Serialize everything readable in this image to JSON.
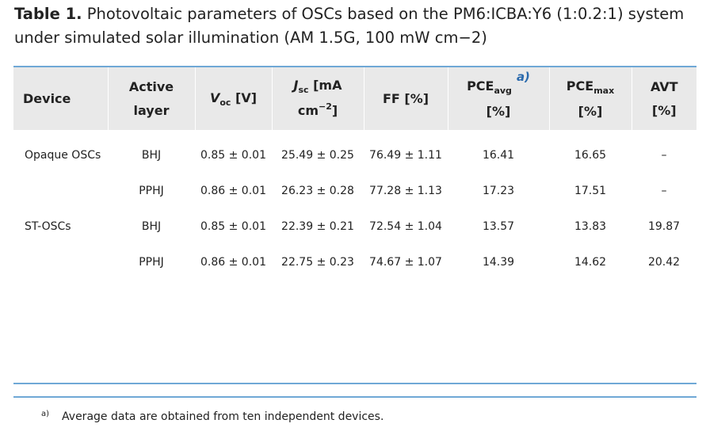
{
  "caption": {
    "label": "Table 1.",
    "text": "Photovoltaic parameters of OSCs based on the PM6:ICBA:Y6 (1:0.2:1) system under simulated solar illumination (AM 1.5G, 100 mW cm−2)"
  },
  "headers": {
    "device": "Device",
    "layer_1": "Active",
    "layer_2": "layer",
    "voc_main": "V",
    "voc_sub": "oc",
    "voc_unit": " [V]",
    "jsc_main": "J",
    "jsc_sub": "sc",
    "jsc_unit": " [mA",
    "jsc_unit2": "cm",
    "jsc_sup": "−2",
    "jsc_close": "]",
    "ff": "FF [%]",
    "pceavg_main": "PCE",
    "pceavg_sub": "avg",
    "pceavg_note": "a)",
    "pceavg_unit": "[%]",
    "pcemax_main": "PCE",
    "pcemax_sub": "max",
    "pcemax_unit": "[%]",
    "avt_1": "AVT",
    "avt_2": "[%]"
  },
  "rows": [
    {
      "device": "Opaque OSCs",
      "layer": "BHJ",
      "voc": "0.85 ± 0.01",
      "jsc": "25.49 ± 0.25",
      "ff": "76.49 ± 1.11",
      "pceavg": "16.41",
      "pcemax": "16.65",
      "avt": "–"
    },
    {
      "device": "",
      "layer": "PPHJ",
      "voc": "0.86 ± 0.01",
      "jsc": "26.23 ± 0.28",
      "ff": "77.28 ± 1.13",
      "pceavg": "17.23",
      "pcemax": "17.51",
      "avt": "–"
    },
    {
      "device": "ST-OSCs",
      "layer": "BHJ",
      "voc": "0.85 ± 0.01",
      "jsc": "22.39 ± 0.21",
      "ff": "72.54 ± 1.04",
      "pceavg": "13.57",
      "pcemax": "13.83",
      "avt": "19.87"
    },
    {
      "device": "",
      "layer": "PPHJ",
      "voc": "0.86 ± 0.01",
      "jsc": "22.75 ± 0.23",
      "ff": "74.67 ± 1.07",
      "pceavg": "14.39",
      "pcemax": "14.62",
      "avt": "20.42"
    }
  ],
  "footnote": {
    "mark": "a)",
    "text": "Average data are obtained from ten independent devices."
  },
  "colors": {
    "rule": "#6fa8d6",
    "header_bg": "#e9e9e9",
    "note_link": "#2a6aad"
  }
}
